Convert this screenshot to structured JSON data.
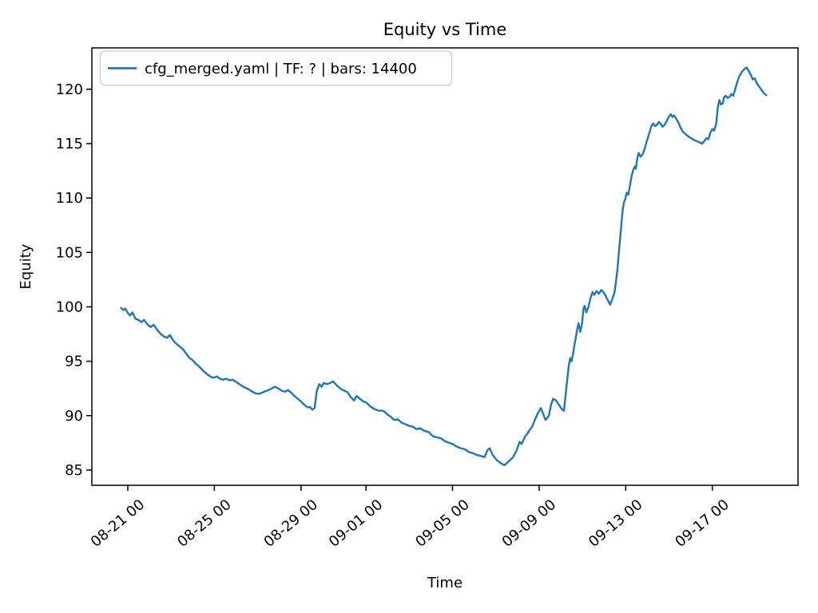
{
  "figure": {
    "title": "Equity vs Time",
    "xlabel": "Time",
    "ylabel": "Equity",
    "legend_label": "cfg_merged.yaml | TF: ? | bars: 14400"
  },
  "colors": {
    "line": "#1f77b4",
    "spine": "#000000",
    "text": "#000000",
    "legend_border": "#cccccc",
    "legend_fill": "rgba(255,255,255,0.8)",
    "background": "#ffffff"
  },
  "chart_data": {
    "type": "line",
    "title": "Equity vs Time",
    "xlabel": "Time",
    "ylabel": "Equity",
    "legend": [
      "cfg_merged.yaml | TF: ? | bars: 14400"
    ],
    "grid": false,
    "legend_position": "upper-left",
    "x_axis": {
      "unit": "day offset from 08-21 00:00",
      "tick_labels": [
        "08-21 00",
        "08-25 00",
        "08-29 00",
        "09-01 00",
        "09-05 00",
        "09-09 00",
        "09-13 00",
        "09-17 00"
      ],
      "tick_day_offsets": [
        0,
        4,
        8,
        11,
        15,
        19,
        23,
        27
      ],
      "range_day_offsets": [
        -1.66,
        30.96
      ],
      "tick_label_rotation_deg": 40
    },
    "y_axis": {
      "ticks": [
        85,
        90,
        95,
        100,
        105,
        110,
        115,
        120
      ],
      "range": [
        83.6,
        123.8
      ]
    },
    "series": [
      {
        "name": "cfg_merged.yaml | TF: ? | bars: 14400",
        "color": "#1f77b4",
        "points_day_equity": [
          [
            -0.31,
            99.9
          ],
          [
            -0.2,
            99.7
          ],
          [
            -0.12,
            99.85
          ],
          [
            0,
            99.45
          ],
          [
            0.1,
            99.2
          ],
          [
            0.22,
            99.5
          ],
          [
            0.35,
            98.9
          ],
          [
            0.5,
            98.8
          ],
          [
            0.63,
            98.6
          ],
          [
            0.75,
            98.8
          ],
          [
            0.9,
            98.4
          ],
          [
            1.05,
            98.15
          ],
          [
            1.2,
            98.35
          ],
          [
            1.35,
            97.9
          ],
          [
            1.5,
            97.55
          ],
          [
            1.65,
            97.3
          ],
          [
            1.8,
            97.15
          ],
          [
            1.95,
            97.4
          ],
          [
            2.1,
            96.9
          ],
          [
            2.25,
            96.6
          ],
          [
            2.4,
            96.35
          ],
          [
            2.55,
            96.1
          ],
          [
            2.7,
            95.7
          ],
          [
            2.85,
            95.3
          ],
          [
            3,
            95.1
          ],
          [
            3.12,
            94.8
          ],
          [
            3.25,
            94.6
          ],
          [
            3.4,
            94.3
          ],
          [
            3.55,
            94
          ],
          [
            3.7,
            93.75
          ],
          [
            3.85,
            93.55
          ],
          [
            4,
            93.5
          ],
          [
            4.12,
            93.6
          ],
          [
            4.25,
            93.4
          ],
          [
            4.4,
            93.3
          ],
          [
            4.55,
            93.4
          ],
          [
            4.7,
            93.25
          ],
          [
            4.85,
            93.3
          ],
          [
            5,
            93.1
          ],
          [
            5.15,
            92.9
          ],
          [
            5.3,
            92.7
          ],
          [
            5.45,
            92.55
          ],
          [
            5.6,
            92.4
          ],
          [
            5.75,
            92.2
          ],
          [
            5.9,
            92.05
          ],
          [
            6.05,
            92
          ],
          [
            6.2,
            92.1
          ],
          [
            6.35,
            92.25
          ],
          [
            6.5,
            92.35
          ],
          [
            6.65,
            92.5
          ],
          [
            6.8,
            92.65
          ],
          [
            6.95,
            92.5
          ],
          [
            7.1,
            92.3
          ],
          [
            7.25,
            92.2
          ],
          [
            7.4,
            92.35
          ],
          [
            7.55,
            92.1
          ],
          [
            7.7,
            91.8
          ],
          [
            7.85,
            91.55
          ],
          [
            8,
            91.3
          ],
          [
            8.15,
            91
          ],
          [
            8.3,
            90.75
          ],
          [
            8.42,
            90.8
          ],
          [
            8.52,
            90.55
          ],
          [
            8.63,
            90.7
          ],
          [
            8.73,
            92.3
          ],
          [
            8.85,
            92.9
          ],
          [
            8.95,
            92.65
          ],
          [
            9.05,
            93
          ],
          [
            9.2,
            92.9
          ],
          [
            9.35,
            93
          ],
          [
            9.48,
            93.15
          ],
          [
            9.6,
            92.9
          ],
          [
            9.72,
            92.65
          ],
          [
            9.85,
            92.45
          ],
          [
            10,
            92.3
          ],
          [
            10.15,
            92.15
          ],
          [
            10.3,
            91.7
          ],
          [
            10.45,
            91.4
          ],
          [
            10.58,
            91.8
          ],
          [
            10.72,
            91.55
          ],
          [
            10.88,
            91.3
          ],
          [
            11.02,
            91.2
          ],
          [
            11.2,
            90.85
          ],
          [
            11.4,
            90.6
          ],
          [
            11.6,
            90.45
          ],
          [
            11.8,
            90.45
          ],
          [
            12,
            90.1
          ],
          [
            12.15,
            89.9
          ],
          [
            12.3,
            89.6
          ],
          [
            12.48,
            89.65
          ],
          [
            12.65,
            89.35
          ],
          [
            12.85,
            89.2
          ],
          [
            13,
            89.05
          ],
          [
            13.15,
            89
          ],
          [
            13.35,
            88.75
          ],
          [
            13.5,
            88.85
          ],
          [
            13.7,
            88.6
          ],
          [
            13.9,
            88.5
          ],
          [
            14.1,
            88.1
          ],
          [
            14.3,
            88
          ],
          [
            14.48,
            87.9
          ],
          [
            14.65,
            87.65
          ],
          [
            14.85,
            87.5
          ],
          [
            15,
            87.4
          ],
          [
            15.2,
            87.15
          ],
          [
            15.4,
            87
          ],
          [
            15.58,
            86.9
          ],
          [
            15.75,
            86.65
          ],
          [
            15.95,
            86.55
          ],
          [
            16.1,
            86.4
          ],
          [
            16.3,
            86.3
          ],
          [
            16.48,
            86.2
          ],
          [
            16.62,
            86.85
          ],
          [
            16.72,
            87
          ],
          [
            16.85,
            86.4
          ],
          [
            17.05,
            85.9
          ],
          [
            17.25,
            85.6
          ],
          [
            17.4,
            85.45
          ],
          [
            17.6,
            85.8
          ],
          [
            17.8,
            86.2
          ],
          [
            17.95,
            86.75
          ],
          [
            18.1,
            87.6
          ],
          [
            18.2,
            87.4
          ],
          [
            18.35,
            88.1
          ],
          [
            18.45,
            88.3
          ],
          [
            18.55,
            88.65
          ],
          [
            18.68,
            89
          ],
          [
            18.8,
            89.6
          ],
          [
            18.95,
            90.25
          ],
          [
            19.08,
            90.7
          ],
          [
            19.2,
            90.1
          ],
          [
            19.3,
            89.6
          ],
          [
            19.45,
            90
          ],
          [
            19.55,
            91
          ],
          [
            19.65,
            91.55
          ],
          [
            19.78,
            91.4
          ],
          [
            19.93,
            90.95
          ],
          [
            20.05,
            90.6
          ],
          [
            20.15,
            90.45
          ],
          [
            20.22,
            91.8
          ],
          [
            20.3,
            93.3
          ],
          [
            20.37,
            94.6
          ],
          [
            20.44,
            95.3
          ],
          [
            20.5,
            95
          ],
          [
            20.56,
            95.6
          ],
          [
            20.65,
            96.7
          ],
          [
            20.75,
            97.8
          ],
          [
            20.82,
            98.5
          ],
          [
            20.9,
            97.7
          ],
          [
            20.98,
            98.4
          ],
          [
            21.05,
            99.8
          ],
          [
            21.1,
            100.1
          ],
          [
            21.18,
            99.5
          ],
          [
            21.28,
            100
          ],
          [
            21.38,
            100.85
          ],
          [
            21.47,
            101.35
          ],
          [
            21.55,
            101.1
          ],
          [
            21.65,
            101.45
          ],
          [
            21.76,
            101.2
          ],
          [
            21.87,
            101.55
          ],
          [
            21.98,
            101.35
          ],
          [
            22.1,
            100.9
          ],
          [
            22.2,
            100.5
          ],
          [
            22.28,
            100.2
          ],
          [
            22.38,
            100.7
          ],
          [
            22.48,
            101.3
          ],
          [
            22.55,
            102.3
          ],
          [
            22.62,
            103.5
          ],
          [
            22.68,
            104.9
          ],
          [
            22.74,
            106.2
          ],
          [
            22.8,
            107.6
          ],
          [
            22.86,
            108.9
          ],
          [
            22.92,
            109.6
          ],
          [
            22.98,
            109.9
          ],
          [
            23.05,
            110.5
          ],
          [
            23.12,
            110.3
          ],
          [
            23.2,
            111.2
          ],
          [
            23.28,
            112.1
          ],
          [
            23.35,
            112.6
          ],
          [
            23.42,
            112.9
          ],
          [
            23.47,
            112.7
          ],
          [
            23.54,
            113.7
          ],
          [
            23.6,
            114.15
          ],
          [
            23.68,
            113.8
          ],
          [
            23.78,
            114
          ],
          [
            23.87,
            114.5
          ],
          [
            23.97,
            115.2
          ],
          [
            24.08,
            115.9
          ],
          [
            24.18,
            116.6
          ],
          [
            24.27,
            116.85
          ],
          [
            24.35,
            116.6
          ],
          [
            24.45,
            116.75
          ],
          [
            24.53,
            117
          ],
          [
            24.6,
            116.85
          ],
          [
            24.7,
            116.55
          ],
          [
            24.8,
            116.75
          ],
          [
            24.9,
            117.1
          ],
          [
            25,
            117.5
          ],
          [
            25.08,
            117.7
          ],
          [
            25.16,
            117.45
          ],
          [
            25.23,
            117.6
          ],
          [
            25.31,
            117.35
          ],
          [
            25.42,
            117
          ],
          [
            25.53,
            116.5
          ],
          [
            25.64,
            116.1
          ],
          [
            25.75,
            115.9
          ],
          [
            25.87,
            115.7
          ],
          [
            25.98,
            115.55
          ],
          [
            26.1,
            115.4
          ],
          [
            26.2,
            115.3
          ],
          [
            26.32,
            115.2
          ],
          [
            26.43,
            115.1
          ],
          [
            26.53,
            115
          ],
          [
            26.63,
            115.25
          ],
          [
            26.73,
            115.5
          ],
          [
            26.82,
            115.4
          ],
          [
            26.92,
            116.05
          ],
          [
            27,
            116.35
          ],
          [
            27.08,
            116.2
          ],
          [
            27.18,
            116.8
          ],
          [
            27.25,
            118.3
          ],
          [
            27.33,
            119
          ],
          [
            27.4,
            118.6
          ],
          [
            27.48,
            118.7
          ],
          [
            27.55,
            119.3
          ],
          [
            27.63,
            119.4
          ],
          [
            27.7,
            119.2
          ],
          [
            27.8,
            119.3
          ],
          [
            27.88,
            119.55
          ],
          [
            27.96,
            119.4
          ],
          [
            28.03,
            119.8
          ],
          [
            28.14,
            120.6
          ],
          [
            28.25,
            121.2
          ],
          [
            28.37,
            121.6
          ],
          [
            28.48,
            121.85
          ],
          [
            28.58,
            122
          ],
          [
            28.66,
            121.75
          ],
          [
            28.77,
            121.35
          ],
          [
            28.87,
            120.9
          ],
          [
            28.96,
            121
          ],
          [
            29.07,
            120.5
          ],
          [
            29.18,
            120.2
          ],
          [
            29.29,
            119.9
          ],
          [
            29.4,
            119.6
          ],
          [
            29.5,
            119.45
          ]
        ]
      }
    ]
  }
}
